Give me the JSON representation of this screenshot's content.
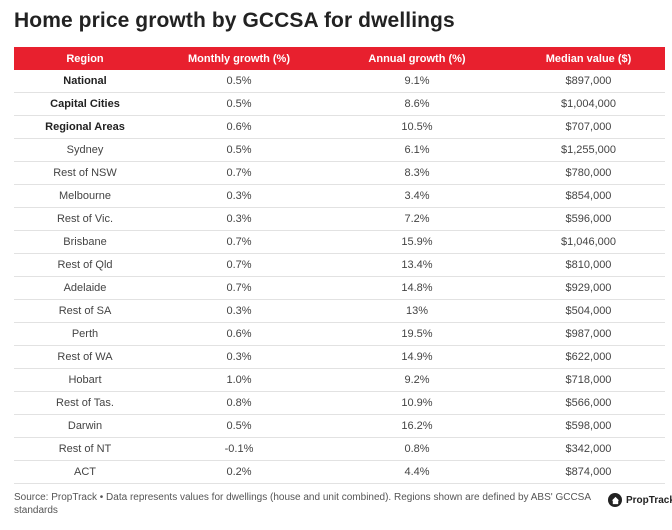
{
  "title": "Home price growth by GCCSA for dwellings",
  "colors": {
    "header_bg": "#e8202e",
    "header_text": "#ffffff"
  },
  "table": {
    "headers": [
      "Region",
      "Monthly growth (%)",
      "Annual growth (%)",
      "Median value ($)"
    ],
    "rows": [
      {
        "region": "National",
        "monthly": "0.5%",
        "annual": "9.1%",
        "median": "$897,000",
        "bold": true
      },
      {
        "region": "Capital Cities",
        "monthly": "0.5%",
        "annual": "8.6%",
        "median": "$1,004,000",
        "bold": true
      },
      {
        "region": "Regional Areas",
        "monthly": "0.6%",
        "annual": "10.5%",
        "median": "$707,000",
        "bold": true
      },
      {
        "region": "Sydney",
        "monthly": "0.5%",
        "annual": "6.1%",
        "median": "$1,255,000",
        "bold": false
      },
      {
        "region": "Rest of NSW",
        "monthly": "0.7%",
        "annual": "8.3%",
        "median": "$780,000",
        "bold": false
      },
      {
        "region": "Melbourne",
        "monthly": "0.3%",
        "annual": "3.4%",
        "median": "$854,000",
        "bold": false
      },
      {
        "region": "Rest of Vic.",
        "monthly": "0.3%",
        "annual": "7.2%",
        "median": "$596,000",
        "bold": false
      },
      {
        "region": "Brisbane",
        "monthly": "0.7%",
        "annual": "15.9%",
        "median": "$1,046,000",
        "bold": false
      },
      {
        "region": "Rest of Qld",
        "monthly": "0.7%",
        "annual": "13.4%",
        "median": "$810,000",
        "bold": false
      },
      {
        "region": "Adelaide",
        "monthly": "0.7%",
        "annual": "14.8%",
        "median": "$929,000",
        "bold": false
      },
      {
        "region": "Rest of SA",
        "monthly": "0.3%",
        "annual": "13%",
        "median": "$504,000",
        "bold": false
      },
      {
        "region": "Perth",
        "monthly": "0.6%",
        "annual": "19.5%",
        "median": "$987,000",
        "bold": false
      },
      {
        "region": "Rest of WA",
        "monthly": "0.3%",
        "annual": "14.9%",
        "median": "$622,000",
        "bold": false
      },
      {
        "region": "Hobart",
        "monthly": "1.0%",
        "annual": "9.2%",
        "median": "$718,000",
        "bold": false
      },
      {
        "region": "Rest of Tas.",
        "monthly": "0.8%",
        "annual": "10.9%",
        "median": "$566,000",
        "bold": false
      },
      {
        "region": "Darwin",
        "monthly": "0.5%",
        "annual": "16.2%",
        "median": "$598,000",
        "bold": false
      },
      {
        "region": "Rest of NT",
        "monthly": "-0.1%",
        "annual": "0.8%",
        "median": "$342,000",
        "bold": false
      },
      {
        "region": "ACT",
        "monthly": "0.2%",
        "annual": "4.4%",
        "median": "$874,000",
        "bold": false
      }
    ]
  },
  "footer": {
    "source": "Source: PropTrack • Data represents values for dwellings (house and unit combined). Regions shown are defined by ABS' GCCSA standards",
    "logo_text": "PropTrack",
    "logo_icon": "house-icon"
  }
}
